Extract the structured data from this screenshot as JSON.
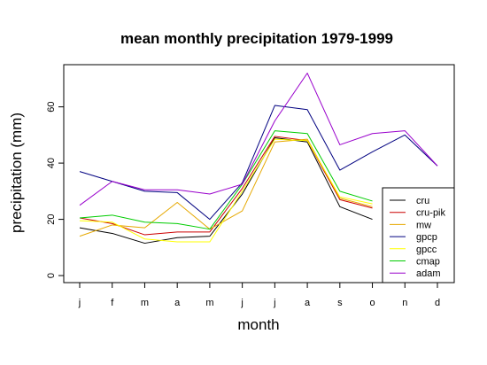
{
  "chart_data": {
    "type": "line",
    "title": "mean monthly precipitation 1979-1999",
    "xlabel": "month",
    "ylabel": "precipitation (mm)",
    "categories": [
      "j",
      "f",
      "m",
      "a",
      "m",
      "j",
      "j",
      "a",
      "s",
      "o",
      "n",
      "d"
    ],
    "yticks": [
      0,
      20,
      40,
      60
    ],
    "ylim": [
      -2.5,
      75
    ],
    "grid": false,
    "legend_position": "bottom-right",
    "series": [
      {
        "name": "cru",
        "color": "#000000",
        "values": [
          17,
          15,
          11.5,
          13.5,
          14,
          29,
          49,
          47.5,
          24.5,
          20,
          null,
          null
        ]
      },
      {
        "name": "cru-pik",
        "color": "#cc0000",
        "values": [
          20.5,
          18.5,
          14.5,
          15.5,
          15.5,
          31,
          49.5,
          48,
          27,
          24,
          null,
          null
        ]
      },
      {
        "name": "mw",
        "color": "#e6a800",
        "values": [
          14,
          18,
          17,
          26,
          16.5,
          23,
          47.5,
          48.5,
          27.5,
          24.5,
          null,
          null
        ]
      },
      {
        "name": "gpcp",
        "color": "#000080",
        "values": [
          37,
          33.5,
          30,
          29.5,
          20,
          33,
          60.5,
          59,
          37.5,
          44,
          50,
          39
        ]
      },
      {
        "name": "gpcc",
        "color": "#ffff00",
        "values": [
          19.5,
          19,
          13,
          12,
          12,
          30,
          48.5,
          48,
          28,
          25.5,
          null,
          null
        ]
      },
      {
        "name": "cmap",
        "color": "#00cc00",
        "values": [
          20.5,
          21.5,
          19,
          18.5,
          16.5,
          32.5,
          51.5,
          50.5,
          30,
          26.5,
          null,
          null
        ]
      },
      {
        "name": "adam",
        "color": "#9900cc",
        "values": [
          25,
          33.5,
          30.5,
          30.5,
          29,
          32.5,
          55,
          72,
          46.5,
          50.5,
          51.5,
          39
        ]
      }
    ]
  }
}
